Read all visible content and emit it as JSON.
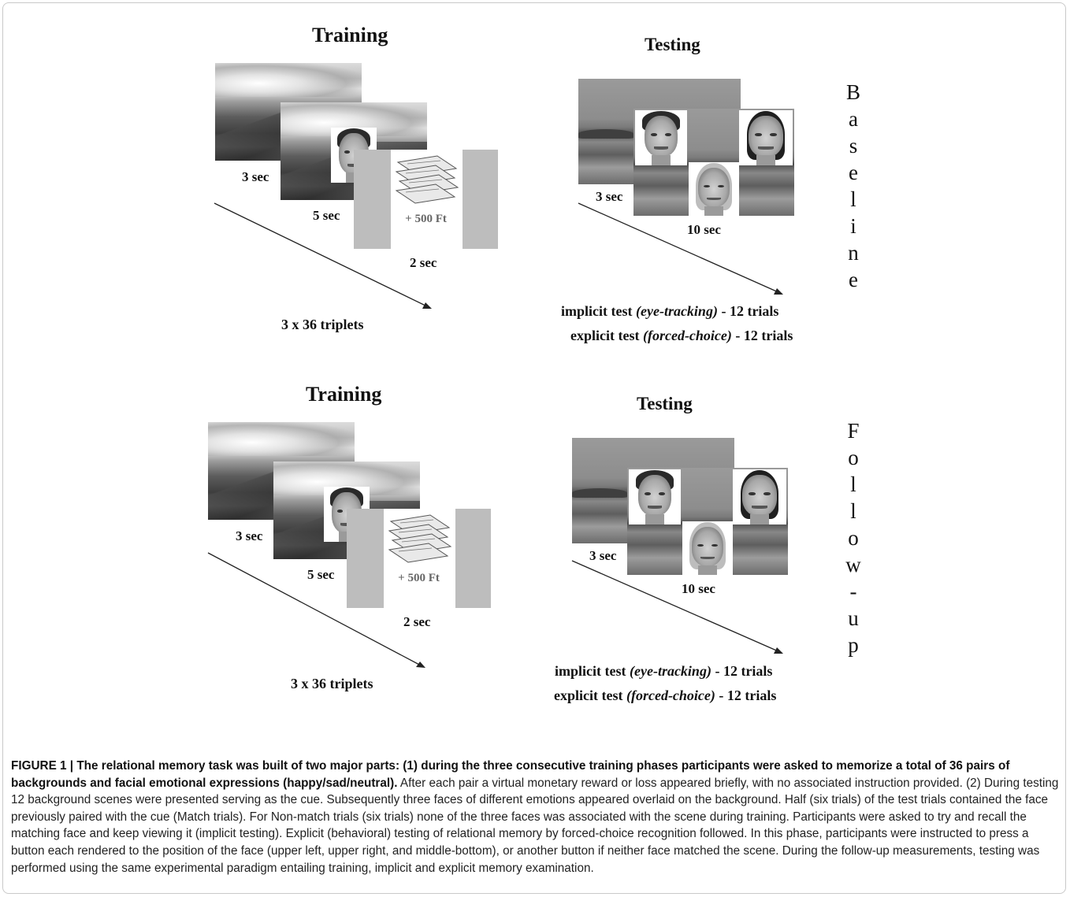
{
  "panels": [
    {
      "training_title": "Training",
      "testing_title": "Testing",
      "t1": "3 sec",
      "t2": "5 sec",
      "t3": "2 sec",
      "reward": "+ 500 Ft",
      "triplets": "3 x 36 triplets",
      "test_t1": "3 sec",
      "test_t2": "10 sec",
      "implicit_a": "implicit test ",
      "implicit_b": "(eye-tracking)",
      "implicit_c": " - 12 trials",
      "explicit_a": "explicit test ",
      "explicit_b": "(forced-choice)",
      "explicit_c": " - 12 trials",
      "side_letters": [
        "B",
        "a",
        "s",
        "e",
        "l",
        "i",
        "n",
        "e"
      ]
    },
    {
      "training_title": "Training",
      "testing_title": "Testing",
      "t1": "3 sec",
      "t2": "5 sec",
      "t3": "2 sec",
      "reward": "+ 500 Ft",
      "triplets": "3 x 36 triplets",
      "test_t1": "3 sec",
      "test_t2": "10 sec",
      "implicit_a": "implicit test ",
      "implicit_b": "(eye-tracking)",
      "implicit_c": " - 12 trials",
      "explicit_a": "explicit test ",
      "explicit_b": "(forced-choice)",
      "explicit_c": " - 12 trials",
      "side_letters": [
        "F",
        "o",
        "l",
        "l",
        "o",
        "w",
        "-",
        "u",
        "p"
      ]
    }
  ],
  "caption": {
    "bold": "FIGURE 1 | The relational memory task was built of two major parts: (1) during the three consecutive training phases participants were asked to memorize a total of 36 pairs of backgrounds and facial emotional expressions (happy/sad/neutral).",
    "text": " After each pair a virtual monetary reward or loss appeared briefly, with no associated instruction provided. (2) During testing 12 background scenes were presented serving as the cue. Subsequently three faces of different emotions appeared overlaid on the background. Half (six trials) of the test trials contained the face previously paired with the cue (Match trials). For Non-match trials (six trials) none of the three faces was associated with the scene during training. Participants were asked to try and recall the matching face and keep viewing it (implicit testing). Explicit (behavioral) testing of relational memory by forced-choice recognition followed. In this phase, participants were instructed to press a button each rendered to the position of the face (upper left, upper right, and middle-bottom), or another button if neither face matched the scene. During the follow-up measurements, testing was performed using the same experimental paradigm entailing training, implicit and explicit memory examination."
  }
}
